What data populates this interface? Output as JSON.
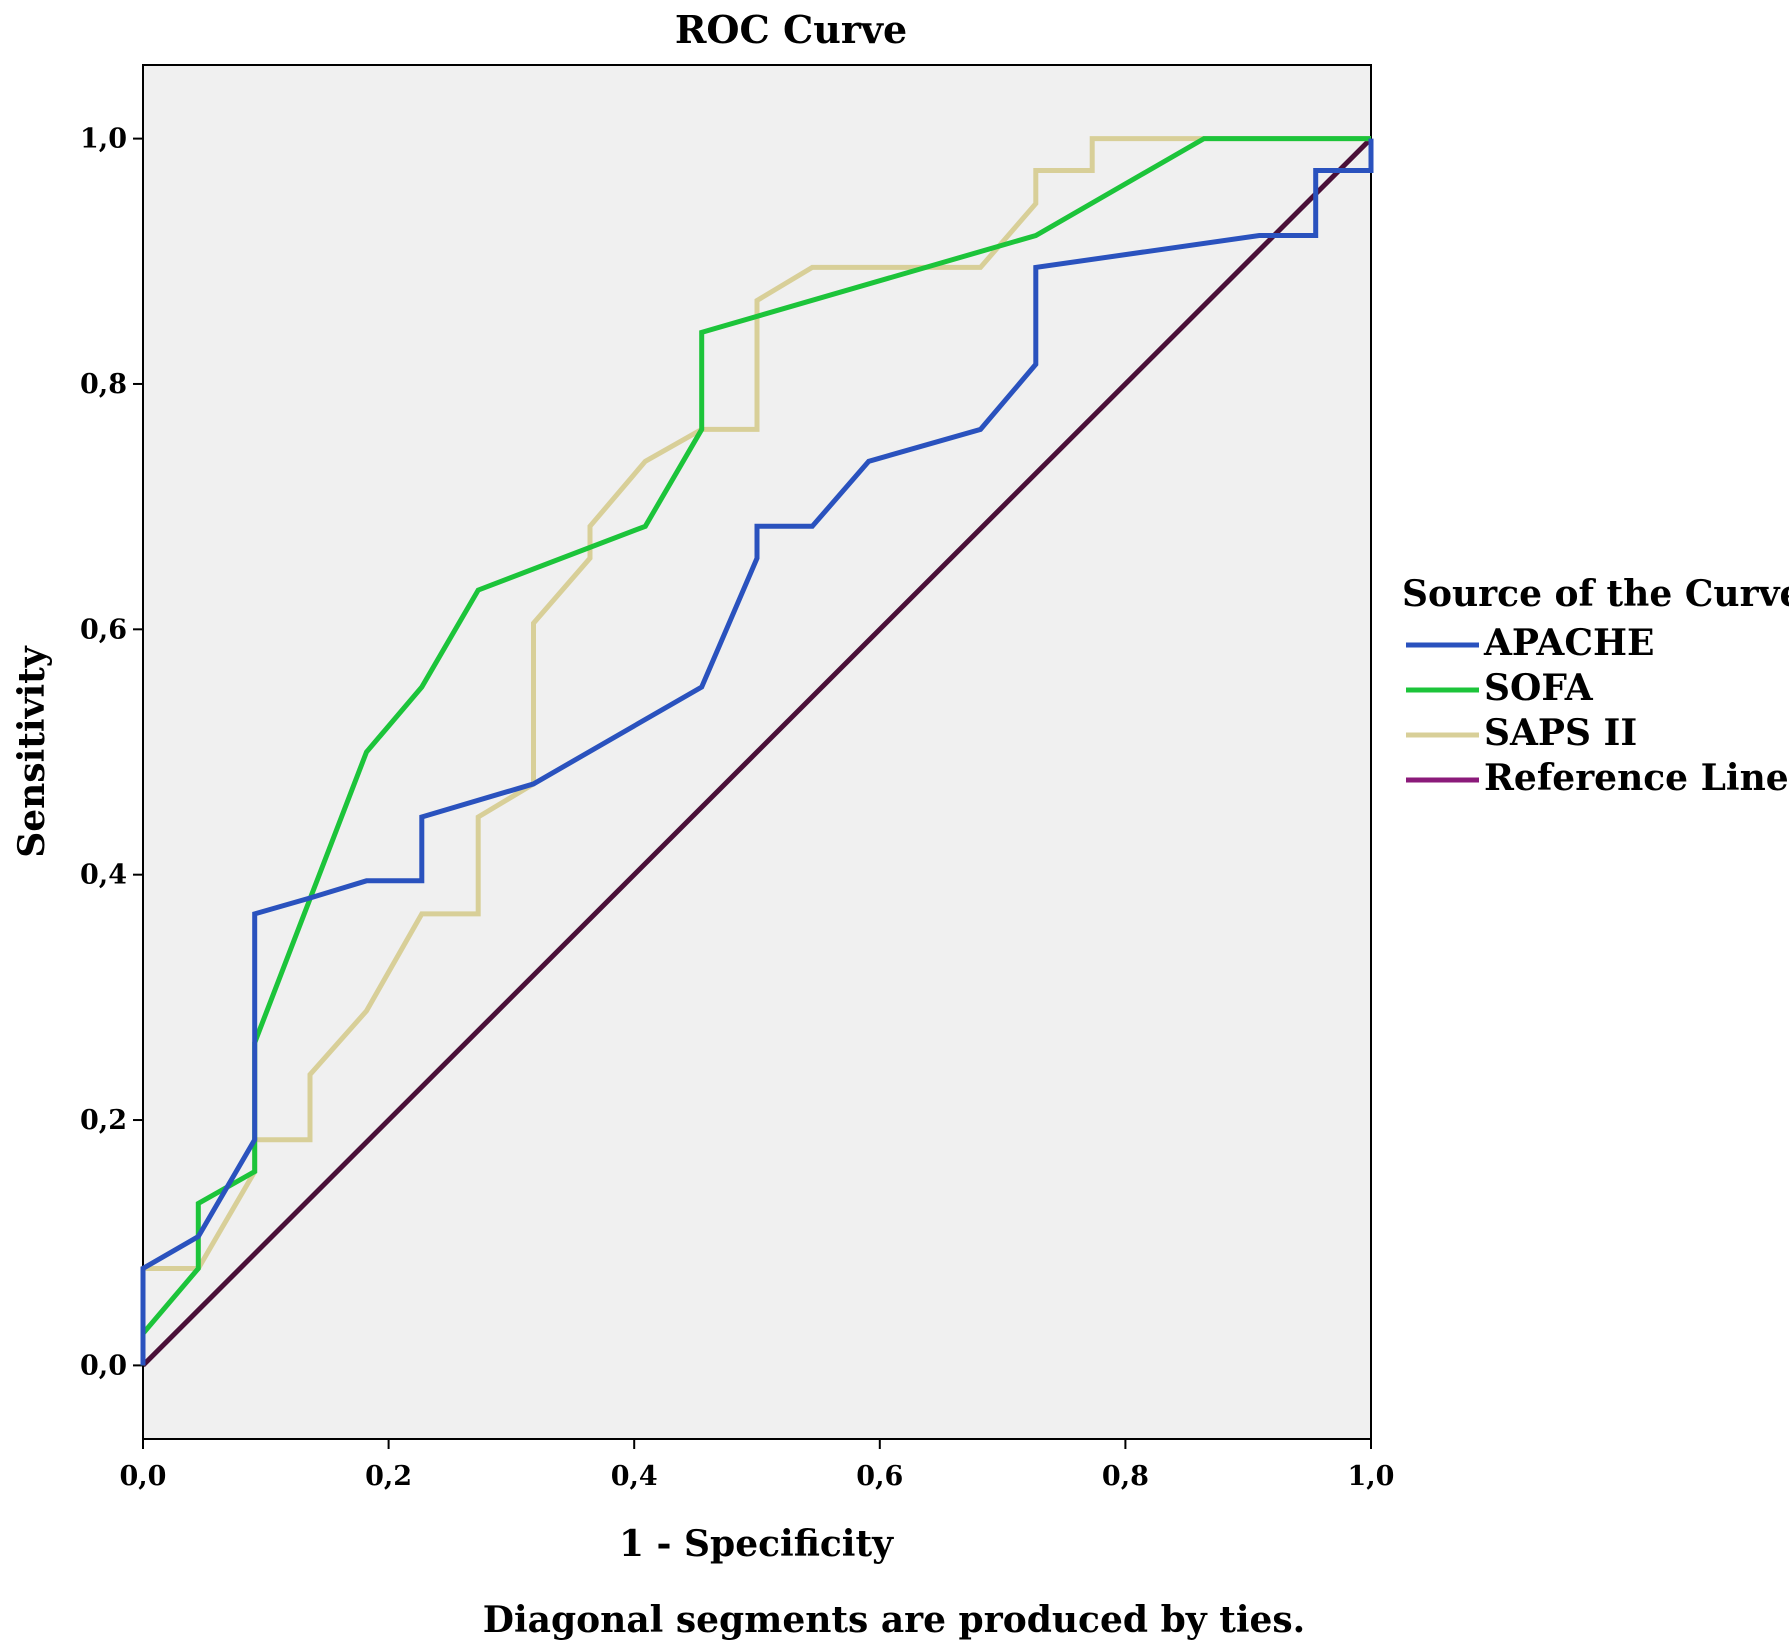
{
  "chart_data": {
    "type": "line",
    "title": "ROC Curve",
    "xlabel": "1 - Specificity",
    "ylabel": "Sensitivity",
    "footnote": "Diagonal segments are produced by ties.",
    "xlim": [
      0,
      1
    ],
    "ylim": [
      -0.06,
      1.06
    ],
    "x_ticks": [
      "0,0",
      "0,2",
      "0,4",
      "0,6",
      "0,8",
      "1,0"
    ],
    "y_ticks": [
      "0,0",
      "0,2",
      "0,4",
      "0,6",
      "0,8",
      "1,0"
    ],
    "legend_title": "Source of the Curve",
    "legend_position": "right",
    "series": [
      {
        "name": "APACHE",
        "color": "#2a52be",
        "x": [
          0,
          0,
          0.045,
          0.091,
          0.091,
          0.136,
          0.182,
          0.227,
          0.227,
          0.318,
          0.455,
          0.5,
          0.5,
          0.545,
          0.591,
          0.682,
          0.727,
          0.727,
          0.909,
          0.955,
          0.955,
          1.0,
          1.0
        ],
        "y": [
          0,
          0.079,
          0.105,
          0.184,
          0.368,
          0.381,
          0.395,
          0.395,
          0.447,
          0.474,
          0.553,
          0.658,
          0.684,
          0.684,
          0.737,
          0.763,
          0.816,
          0.895,
          0.921,
          0.921,
          0.974,
          0.974,
          1.0
        ]
      },
      {
        "name": "SOFA",
        "color": "#1cc43a",
        "x": [
          0,
          0,
          0.045,
          0.045,
          0.091,
          0.091,
          0.182,
          0.227,
          0.273,
          0.409,
          0.455,
          0.455,
          0.727,
          0.864,
          1.0
        ],
        "y": [
          0,
          0.026,
          0.079,
          0.132,
          0.158,
          0.263,
          0.5,
          0.553,
          0.632,
          0.684,
          0.763,
          0.842,
          0.921,
          1.0,
          1.0
        ]
      },
      {
        "name": "SAPS II",
        "color": "#d8cf98",
        "x": [
          0,
          0,
          0.045,
          0.091,
          0.091,
          0.136,
          0.136,
          0.182,
          0.227,
          0.273,
          0.273,
          0.318,
          0.318,
          0.364,
          0.364,
          0.409,
          0.455,
          0.5,
          0.5,
          0.545,
          0.682,
          0.727,
          0.727,
          0.773,
          0.773,
          1.0
        ],
        "y": [
          0,
          0.079,
          0.079,
          0.158,
          0.184,
          0.184,
          0.237,
          0.289,
          0.368,
          0.368,
          0.447,
          0.474,
          0.605,
          0.658,
          0.684,
          0.737,
          0.763,
          0.763,
          0.868,
          0.895,
          0.895,
          0.947,
          0.974,
          0.974,
          1.0,
          1.0
        ]
      },
      {
        "name": "Reference Line",
        "color": "#4a1038",
        "legend_color": "#8b1a7a",
        "x": [
          0,
          1
        ],
        "y": [
          0,
          1
        ]
      }
    ]
  }
}
